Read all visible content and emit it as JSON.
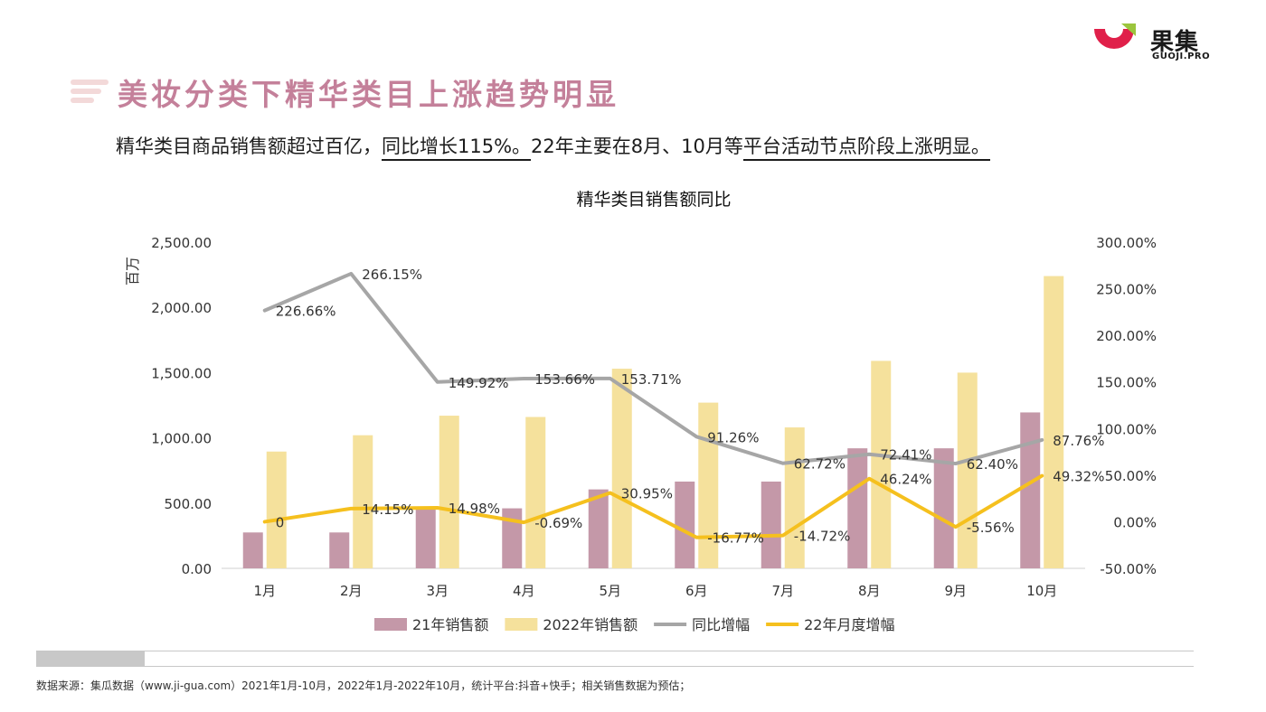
{
  "logo": {
    "name": "果集",
    "sub": "GUOJI.PRO"
  },
  "title": "美妆分类下精华类目上涨趋势明显",
  "subtitle": {
    "part1": "精华类目商品销售额超过百亿，",
    "part2": "同比增长115%。",
    "part3": "22年主要在8月、10月等",
    "part4": "平台活动节点阶段上涨明显。"
  },
  "source": "数据来源：集瓜数据（www.ji-gua.com）2021年1月-10月，2022年1月-2022年10月，统计平台:抖音+快手；相关销售数据为预估；",
  "colors": {
    "bar2021": "#c498a8",
    "bar2022": "#f5e19c",
    "yoy": "#a6a6a6",
    "monthly": "#f5c01e",
    "title": "#c4809a"
  },
  "chart_data": {
    "type": "bar",
    "title": "精华类目销售额同比",
    "ylabel": "百万",
    "categories": [
      "1月",
      "2月",
      "3月",
      "4月",
      "5月",
      "6月",
      "7月",
      "8月",
      "9月",
      "10月"
    ],
    "ylim": [
      0,
      2500
    ],
    "y_ticks": [
      "0.00",
      "500.00",
      "1,000.00",
      "1,500.00",
      "2,000.00",
      "2,500.00"
    ],
    "y2lim": [
      -50,
      300
    ],
    "y2_ticks": [
      "-50.00%",
      "0.00%",
      "50.00%",
      "100.00%",
      "150.00%",
      "200.00%",
      "250.00%",
      "300.00%"
    ],
    "grid": false,
    "legend": "bottom",
    "series": [
      {
        "name": "21年销售额",
        "type": "bar",
        "axis": "left",
        "values": [
          275,
          275,
          470,
          460,
          605,
          665,
          665,
          920,
          920,
          1195
        ]
      },
      {
        "name": "2022年销售额",
        "type": "bar",
        "axis": "left",
        "values": [
          895,
          1020,
          1170,
          1160,
          1530,
          1270,
          1080,
          1590,
          1500,
          2240
        ]
      },
      {
        "name": "同比增幅",
        "type": "line",
        "axis": "right",
        "values": [
          226.66,
          266.15,
          149.92,
          153.66,
          153.71,
          91.26,
          62.72,
          72.41,
          62.4,
          87.76
        ],
        "labels": [
          "226.66%",
          "266.15%",
          "149.92%",
          "153.66%",
          "153.71%",
          "91.26%",
          "62.72%",
          "72.41%",
          "62.40%",
          "87.76%"
        ]
      },
      {
        "name": "22年月度增幅",
        "type": "line",
        "axis": "right",
        "values": [
          0,
          14.15,
          14.98,
          -0.69,
          30.95,
          -16.77,
          -14.72,
          46.24,
          -5.56,
          49.32
        ],
        "labels": [
          "0",
          "14.15%",
          "14.98%",
          "-0.69%",
          "30.95%",
          "-16.77%",
          "-14.72%",
          "46.24%",
          "-5.56%",
          "49.32%"
        ]
      }
    ]
  }
}
